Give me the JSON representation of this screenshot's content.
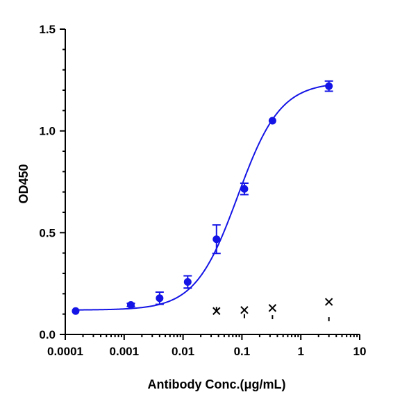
{
  "chart_data": {
    "type": "scatter",
    "title": "",
    "xlabel": "Antibody Conc.(μg/mL)",
    "ylabel": "OD450",
    "xscale": "log",
    "xlim": [
      0.0001,
      10
    ],
    "ylim": [
      0.0,
      1.5
    ],
    "x_ticks": [
      {
        "value": 0.0001,
        "label": "0.0001"
      },
      {
        "value": 0.001,
        "label": "0.001"
      },
      {
        "value": 0.01,
        "label": "0.01"
      },
      {
        "value": 0.1,
        "label": "0.1"
      },
      {
        "value": 1,
        "label": "1"
      },
      {
        "value": 10,
        "label": "10"
      }
    ],
    "y_ticks": [
      {
        "value": 0.0,
        "label": "0.0"
      },
      {
        "value": 0.5,
        "label": "0.5"
      },
      {
        "value": 1.0,
        "label": "1.0"
      },
      {
        "value": 1.5,
        "label": "1.5"
      }
    ],
    "grid": false,
    "legend": "none",
    "series_color": "#1414e6",
    "marker_color": "#000000",
    "series": [
      {
        "x": [
          0.00015,
          0.0013,
          0.004,
          0.012,
          0.037,
          0.11,
          0.33,
          3.0
        ],
        "y": [
          0.115,
          0.145,
          0.178,
          0.258,
          0.468,
          0.715,
          1.05,
          1.22
        ],
        "error": [
          0.0,
          0.008,
          0.03,
          0.03,
          0.07,
          0.028,
          0.0,
          0.025
        ]
      }
    ],
    "fit_curve": {
      "bottom": 0.12,
      "top": 1.24,
      "ec50": 0.085,
      "hill": 1.2
    },
    "annotations": [
      {
        "symbol": "cross-icon",
        "x": 0.037,
        "y": 0.115
      },
      {
        "symbol": "cross-icon",
        "x": 0.11,
        "y": 0.12
      },
      {
        "symbol": "cross-icon",
        "x": 0.33,
        "y": 0.13
      },
      {
        "symbol": "cross-icon",
        "x": 3.0,
        "y": 0.16
      }
    ],
    "annotation_bars": [
      {
        "x": 0.037,
        "y1": 0.115,
        "y2": 0.135
      },
      {
        "x": 0.11,
        "y1": 0.08,
        "y2": 0.1
      },
      {
        "x": 0.33,
        "y1": 0.075,
        "y2": 0.095
      },
      {
        "x": 3.0,
        "y1": 0.065,
        "y2": 0.085
      }
    ]
  }
}
